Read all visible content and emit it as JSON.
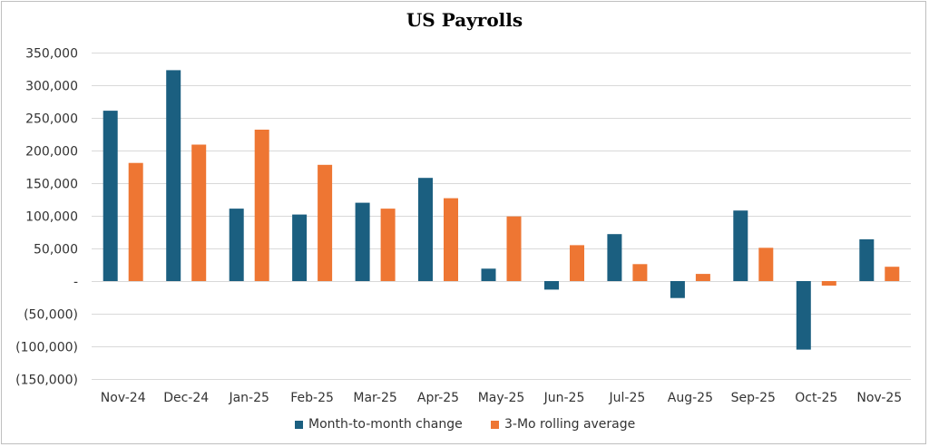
{
  "chart_data": {
    "type": "bar",
    "title": "US Payrolls",
    "categories": [
      "Nov-24",
      "Dec-24",
      "Jan-25",
      "Feb-25",
      "Mar-25",
      "Apr-25",
      "May-25",
      "Jun-25",
      "Jul-25",
      "Aug-25",
      "Sep-25",
      "Oct-25",
      "Nov-25"
    ],
    "series": [
      {
        "name": "Month-to-month change",
        "color": "#1b5f80",
        "values": [
          261000,
          323000,
          111000,
          102000,
          120000,
          158000,
          19000,
          -13000,
          72000,
          -26000,
          108000,
          -105000,
          64000
        ]
      },
      {
        "name": "3-Mo rolling average",
        "color": "#ee7633",
        "values": [
          181000,
          209000,
          232000,
          178000,
          111000,
          127000,
          99000,
          55000,
          26000,
          11000,
          51000,
          -7000,
          22000
        ]
      }
    ],
    "yticks": [
      {
        "value": 350000,
        "label": "350,000"
      },
      {
        "value": 300000,
        "label": "300,000"
      },
      {
        "value": 250000,
        "label": "250,000"
      },
      {
        "value": 200000,
        "label": "200,000"
      },
      {
        "value": 150000,
        "label": "150,000"
      },
      {
        "value": 100000,
        "label": "100,000"
      },
      {
        "value": 50000,
        "label": "50,000"
      },
      {
        "value": 0,
        "label": "-"
      },
      {
        "value": -50000,
        "label": "(50,000)"
      },
      {
        "value": -100000,
        "label": "(100,000)"
      },
      {
        "value": -150000,
        "label": "(150,000)"
      }
    ],
    "ylim": [
      -150000,
      350000
    ],
    "xlabel": "",
    "ylabel": "",
    "grid": true,
    "legend_position": "bottom"
  }
}
